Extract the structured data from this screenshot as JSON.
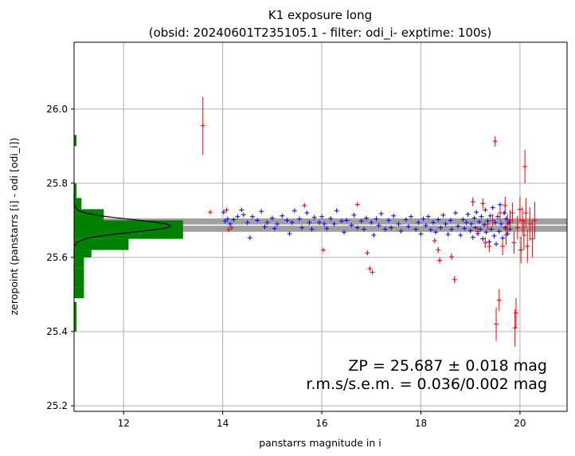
{
  "chart_data": {
    "type": "scatter",
    "title": "K1 exposure long",
    "subtitle": "(obsid: 20240601T235105.1 - filter: odi_i- exptime: 100s)",
    "xlabel": "panstarrs magnitude in i",
    "ylabel": "zeropoint (panstarrs [i] - odi [odi_i])",
    "xlim": [
      11.0,
      20.95
    ],
    "ylim": [
      25.185,
      26.18
    ],
    "xticks": [
      12,
      14,
      16,
      18,
      20
    ],
    "yticks": [
      25.2,
      25.4,
      25.6,
      25.8,
      26.0
    ],
    "xtick_labels": [
      "12",
      "14",
      "16",
      "18",
      "20"
    ],
    "ytick_labels": [
      "25.2",
      "25.4",
      "25.6",
      "25.8",
      "26.0"
    ],
    "grid": true,
    "zeropoint": 25.687,
    "zeropoint_error": 0.018,
    "annotation_zp": "ZP = 25.687 ± 0.018 mag",
    "annotation_rms": "r.m.s/s.e.m. = 0.036/0.002 mag",
    "colors": {
      "accepted": "#0000ff",
      "rejected": "#ff0000",
      "band": "#a0a0a0",
      "histogram": "#008000",
      "gaussian": "#000000",
      "grid": "#b0b0b0"
    },
    "series": [
      {
        "color": "#0000ff",
        "marker": "plus",
        "points": [
          [
            14.02,
            25.722
          ],
          [
            14.05,
            25.698
          ],
          [
            14.1,
            25.704
          ],
          [
            14.15,
            25.69
          ],
          [
            14.22,
            25.702
          ],
          [
            14.3,
            25.71
          ],
          [
            14.38,
            25.728
          ],
          [
            14.42,
            25.715
          ],
          [
            14.5,
            25.694
          ],
          [
            14.55,
            25.653
          ],
          [
            14.6,
            25.71
          ],
          [
            14.7,
            25.7
          ],
          [
            14.78,
            25.724
          ],
          [
            14.85,
            25.682
          ],
          [
            14.9,
            25.694
          ],
          [
            15.0,
            25.706
          ],
          [
            15.05,
            25.678
          ],
          [
            15.1,
            25.69
          ],
          [
            15.2,
            25.712
          ],
          [
            15.3,
            25.7
          ],
          [
            15.35,
            25.664
          ],
          [
            15.4,
            25.694
          ],
          [
            15.45,
            25.726
          ],
          [
            15.55,
            25.704
          ],
          [
            15.6,
            25.68
          ],
          [
            15.7,
            25.72
          ],
          [
            15.75,
            25.694
          ],
          [
            15.8,
            25.676
          ],
          [
            15.85,
            25.708
          ],
          [
            15.95,
            25.694
          ],
          [
            16.0,
            25.71
          ],
          [
            16.05,
            25.69
          ],
          [
            16.1,
            25.678
          ],
          [
            16.18,
            25.705
          ],
          [
            16.25,
            25.69
          ],
          [
            16.3,
            25.726
          ],
          [
            16.4,
            25.698
          ],
          [
            16.45,
            25.668
          ],
          [
            16.5,
            25.7
          ],
          [
            16.6,
            25.687
          ],
          [
            16.65,
            25.714
          ],
          [
            16.72,
            25.68
          ],
          [
            16.8,
            25.698
          ],
          [
            16.85,
            25.676
          ],
          [
            16.9,
            25.706
          ],
          [
            17.0,
            25.694
          ],
          [
            17.05,
            25.66
          ],
          [
            17.1,
            25.704
          ],
          [
            17.15,
            25.686
          ],
          [
            17.2,
            25.718
          ],
          [
            17.28,
            25.676
          ],
          [
            17.35,
            25.7
          ],
          [
            17.4,
            25.68
          ],
          [
            17.45,
            25.712
          ],
          [
            17.55,
            25.69
          ],
          [
            17.6,
            25.671
          ],
          [
            17.7,
            25.702
          ],
          [
            17.75,
            25.683
          ],
          [
            17.8,
            25.71
          ],
          [
            17.9,
            25.676
          ],
          [
            17.95,
            25.694
          ],
          [
            18.0,
            25.663
          ],
          [
            18.05,
            25.704
          ],
          [
            18.1,
            25.686
          ],
          [
            18.15,
            25.71
          ],
          [
            18.2,
            25.674
          ],
          [
            18.25,
            25.694
          ],
          [
            18.3,
            25.668
          ],
          [
            18.35,
            25.702
          ],
          [
            18.4,
            25.68
          ],
          [
            18.45,
            25.714
          ],
          [
            18.5,
            25.69
          ],
          [
            18.55,
            25.662
          ],
          [
            18.6,
            25.7
          ],
          [
            18.62,
            25.676
          ],
          [
            18.7,
            25.72
          ],
          [
            18.75,
            25.684
          ],
          [
            18.8,
            25.66
          ],
          [
            18.85,
            25.702
          ],
          [
            18.88,
            25.678
          ],
          [
            18.92,
            25.694
          ],
          [
            18.95,
            25.716
          ],
          [
            19.0,
            25.672
          ],
          [
            19.02,
            25.69
          ],
          [
            19.05,
            25.654
          ],
          [
            19.08,
            25.706
          ],
          [
            19.1,
            25.68
          ],
          [
            19.12,
            25.722
          ],
          [
            19.15,
            25.664
          ],
          [
            19.18,
            25.696
          ],
          [
            19.2,
            25.676
          ],
          [
            19.22,
            25.71
          ],
          [
            19.25,
            25.65
          ],
          [
            19.28,
            25.688
          ],
          [
            19.3,
            25.728
          ],
          [
            19.32,
            25.668
          ],
          [
            19.35,
            25.698
          ],
          [
            19.38,
            25.642
          ],
          [
            19.4,
            25.712
          ],
          [
            19.42,
            25.676
          ],
          [
            19.45,
            25.734
          ],
          [
            19.48,
            25.658
          ],
          [
            19.5,
            25.694
          ],
          [
            19.52,
            25.636
          ],
          [
            19.55,
            25.71
          ],
          [
            19.58,
            25.67
          ],
          [
            19.6,
            25.742
          ],
          [
            19.62,
            25.69
          ],
          [
            19.65,
            25.652
          ],
          [
            19.68,
            25.72
          ],
          [
            19.7,
            25.68
          ],
          [
            19.72,
            25.704
          ],
          [
            19.75,
            25.664
          ],
          [
            19.78,
            25.694
          ],
          [
            19.8,
            25.676
          ]
        ]
      },
      {
        "color": "#ff0000",
        "marker": "plus-errorbar",
        "points": [
          [
            13.6,
            25.955,
            0.078
          ],
          [
            13.75,
            25.722,
            0.004
          ],
          [
            14.08,
            25.728,
            0.005
          ],
          [
            14.12,
            25.675,
            0.006
          ],
          [
            14.18,
            25.68,
            0.005
          ],
          [
            15.65,
            25.74,
            0.005
          ],
          [
            16.03,
            25.62,
            0.006
          ],
          [
            16.72,
            25.743,
            0.005
          ],
          [
            16.92,
            25.612,
            0.006
          ],
          [
            16.97,
            25.57,
            0.006
          ],
          [
            17.02,
            25.56,
            0.006
          ],
          [
            18.28,
            25.645,
            0.007
          ],
          [
            18.35,
            25.62,
            0.008
          ],
          [
            18.38,
            25.592,
            0.008
          ],
          [
            18.62,
            25.602,
            0.009
          ],
          [
            18.68,
            25.54,
            0.01
          ],
          [
            19.05,
            25.75,
            0.012
          ],
          [
            19.15,
            25.67,
            0.013
          ],
          [
            19.25,
            25.745,
            0.014
          ],
          [
            19.3,
            25.64,
            0.015
          ],
          [
            19.35,
            25.69,
            0.015
          ],
          [
            19.38,
            25.63,
            0.016
          ],
          [
            19.45,
            25.7,
            0.017
          ],
          [
            19.5,
            25.913,
            0.014
          ],
          [
            19.52,
            25.42,
            0.045
          ],
          [
            19.58,
            25.485,
            0.03
          ],
          [
            19.6,
            25.72,
            0.022
          ],
          [
            19.65,
            25.63,
            0.024
          ],
          [
            19.7,
            25.74,
            0.024
          ],
          [
            19.72,
            25.66,
            0.026
          ],
          [
            19.75,
            25.69,
            0.026
          ],
          [
            19.8,
            25.7,
            0.028
          ],
          [
            19.85,
            25.72,
            0.028
          ],
          [
            19.88,
            25.64,
            0.03
          ],
          [
            19.9,
            25.41,
            0.05
          ],
          [
            19.92,
            25.45,
            0.04
          ],
          [
            19.95,
            25.68,
            0.032
          ],
          [
            20.0,
            25.73,
            0.034
          ],
          [
            20.02,
            25.62,
            0.036
          ],
          [
            20.05,
            25.7,
            0.036
          ],
          [
            20.08,
            25.66,
            0.04
          ],
          [
            20.1,
            25.845,
            0.045
          ],
          [
            20.12,
            25.72,
            0.04
          ],
          [
            20.15,
            25.63,
            0.045
          ],
          [
            20.2,
            25.69,
            0.045
          ],
          [
            20.25,
            25.65,
            0.05
          ],
          [
            20.3,
            25.7,
            0.05
          ]
        ]
      }
    ],
    "histogram": {
      "bins": [
        [
          25.49,
          25.52,
          0.2
        ],
        [
          25.52,
          25.57,
          0.2
        ],
        [
          25.57,
          25.6,
          0.2
        ],
        [
          25.6,
          25.62,
          0.35
        ],
        [
          25.62,
          25.65,
          1.1
        ],
        [
          25.65,
          25.7,
          2.2
        ],
        [
          25.7,
          25.73,
          0.6
        ],
        [
          25.73,
          25.76,
          0.15
        ],
        [
          25.76,
          25.8,
          0.05
        ],
        [
          25.4,
          25.48,
          0.05
        ],
        [
          25.9,
          25.93,
          0.05
        ]
      ],
      "gaussian": {
        "mean": 25.685,
        "sigma": 0.017,
        "peak": 1.95
      }
    }
  }
}
